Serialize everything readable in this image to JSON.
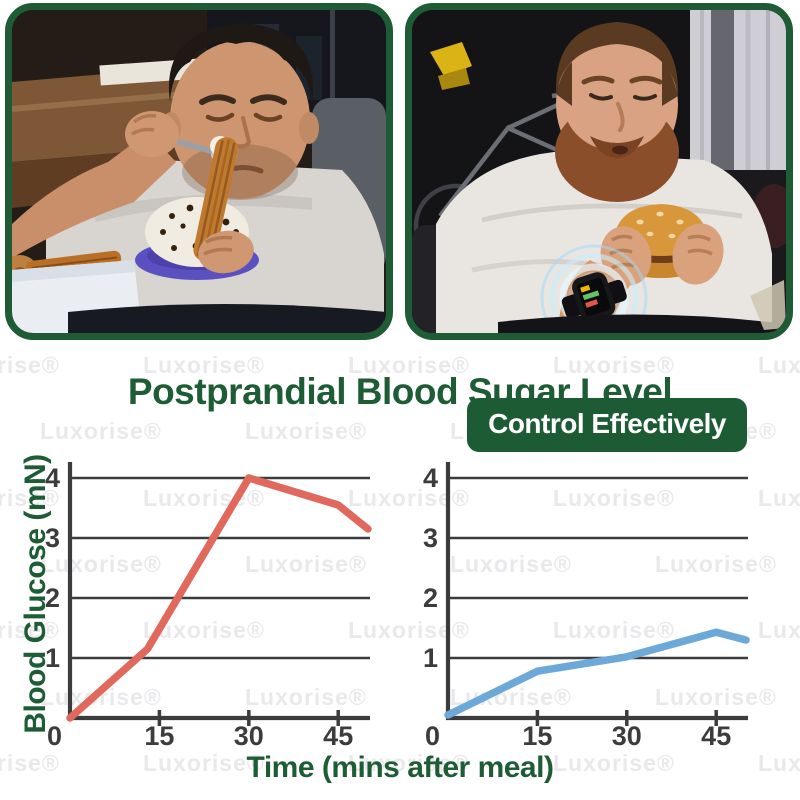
{
  "watermark": {
    "text": "Luxorise®"
  },
  "title": "Postprandial Blood Sugar Level",
  "badge": "Control Effectively",
  "photos": {
    "left_alt": "Overweight man frowning while eating churros and a cream cake with chocolate sprinkles",
    "right_alt": "Bearded man eating a burger while wearing a glowing smartwatch on his wrist"
  },
  "axes": {
    "ylabel": "Blood Glucose (mN)",
    "xlabel": "Time (mins after meal)"
  },
  "colors": {
    "accent_green": "#1e5c36",
    "badge_bg": "#1d5b34",
    "axis_gray": "#3c3c3c",
    "red_line": "#e0685c",
    "blue_line": "#6ca9d8"
  },
  "chart_data": [
    {
      "type": "line",
      "position": "left",
      "line_color": "#e0685c",
      "x": [
        0,
        13,
        30,
        45,
        50
      ],
      "y": [
        0,
        1.15,
        4.0,
        3.55,
        3.15
      ],
      "xticks": [
        0,
        15,
        30,
        45
      ],
      "yticks": [
        0,
        1,
        2,
        3,
        4
      ],
      "xlim": [
        0,
        50
      ],
      "ylim": [
        0,
        4
      ],
      "xlabel": "Time (mins after meal)",
      "ylabel": "Blood Glucose (mN)",
      "grid": true,
      "legend": false
    },
    {
      "type": "line",
      "position": "right",
      "line_color": "#6ca9d8",
      "x": [
        0,
        15,
        30,
        45,
        50
      ],
      "y": [
        0.05,
        0.78,
        1.02,
        1.43,
        1.3
      ],
      "xticks": [
        0,
        15,
        30,
        45
      ],
      "yticks": [
        0,
        1,
        2,
        3,
        4
      ],
      "xlim": [
        0,
        50
      ],
      "ylim": [
        0,
        4
      ],
      "xlabel": "Time (mins after meal)",
      "ylabel": "Blood Glucose (mN)",
      "grid": true,
      "legend": false
    }
  ]
}
